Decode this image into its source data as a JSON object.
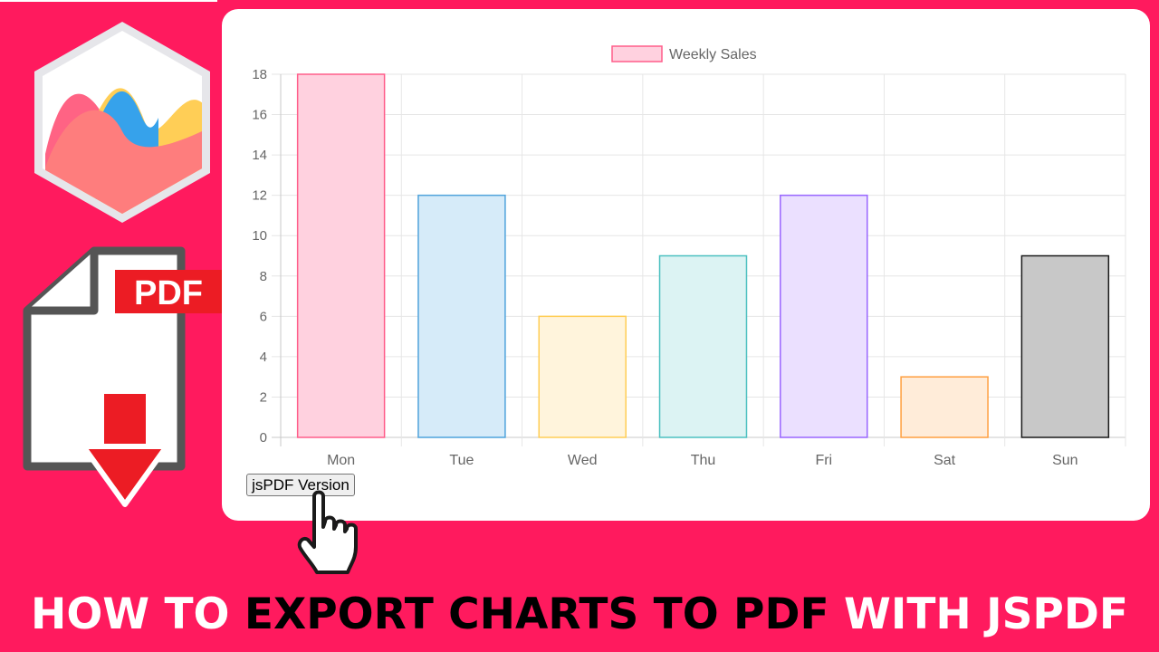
{
  "logo": {
    "icon": "chartjs-logo-icon"
  },
  "pdf_badge": {
    "label": "PDF",
    "icon": "pdf-file-download-icon",
    "badge_color": "#ec1c24"
  },
  "button": {
    "label": "jsPDF Version"
  },
  "banner": {
    "part1": "HOW TO ",
    "part2": "EXPORT CHARTS TO PDF",
    "part3": " WITH JSPDF"
  },
  "colors": {
    "background": "#ff1a5e"
  },
  "chart_data": {
    "type": "bar",
    "categories": [
      "Mon",
      "Tue",
      "Wed",
      "Thu",
      "Fri",
      "Sat",
      "Sun"
    ],
    "series": [
      {
        "name": "Weekly Sales",
        "values": [
          18,
          12,
          6,
          9,
          12,
          3,
          9
        ],
        "fill_colors": [
          "#ffd1df",
          "#d6ebf9",
          "#fff4dc",
          "#dcf3f3",
          "#ebe0ff",
          "#ffecd9",
          "#c8c8c8"
        ],
        "border_colors": [
          "#ff5d8a",
          "#4fa3dc",
          "#ffce56",
          "#4bc0c0",
          "#9966ff",
          "#ff9f40",
          "#1a1a1a"
        ]
      }
    ],
    "legend": {
      "position": "top",
      "label": "Weekly Sales",
      "fill": "#ffd1df",
      "border": "#ff5d8a"
    },
    "yticks": [
      0,
      2,
      4,
      6,
      8,
      10,
      12,
      14,
      16,
      18
    ],
    "ylim": [
      0,
      18
    ],
    "grid": true,
    "xlabel": "",
    "ylabel": ""
  }
}
